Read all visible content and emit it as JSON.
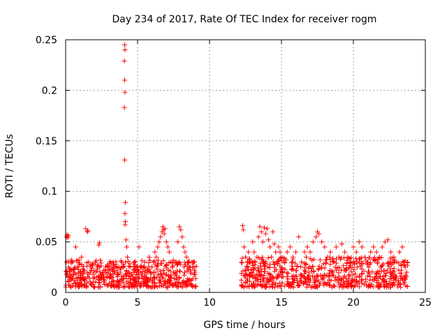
{
  "chart_data": {
    "type": "scatter",
    "title": "Day 234 of 2017, Rate Of TEC Index for receiver rogm",
    "xlabel": "GPS time / hours",
    "ylabel": "ROTI / TECUs",
    "xlim": [
      0,
      25
    ],
    "ylim": [
      0,
      0.25
    ],
    "x_ticks": [
      0,
      5,
      10,
      15,
      20,
      25
    ],
    "y_ticks": [
      0,
      0.05,
      0.1,
      0.15,
      0.2,
      0.25
    ],
    "x_tick_labels": [
      "0",
      "5",
      "10",
      "15",
      "20",
      "25"
    ],
    "y_tick_labels": [
      "0",
      "0.05",
      "0.1",
      "0.15",
      "0.2",
      "0.25"
    ],
    "grid": true,
    "marker": "plus",
    "series_color": "#ff0000",
    "points": [
      [
        0.05,
        0.055
      ],
      [
        0.1,
        0.057
      ],
      [
        0.15,
        0.054
      ],
      [
        0.2,
        0.056
      ],
      [
        0.05,
        0.03
      ],
      [
        0.1,
        0.02
      ],
      [
        0.15,
        0.015
      ],
      [
        0.2,
        0.025
      ],
      [
        0.3,
        0.018
      ],
      [
        0.4,
        0.022
      ],
      [
        0.5,
        0.03
      ],
      [
        0.6,
        0.02
      ],
      [
        0.7,
        0.045
      ],
      [
        0.8,
        0.025
      ],
      [
        0.9,
        0.015
      ],
      [
        1.0,
        0.02
      ],
      [
        1.1,
        0.035
      ],
      [
        1.2,
        0.018
      ],
      [
        1.3,
        0.022
      ],
      [
        1.4,
        0.063
      ],
      [
        1.5,
        0.06
      ],
      [
        1.55,
        0.061
      ],
      [
        1.6,
        0.03
      ],
      [
        1.7,
        0.02
      ],
      [
        1.8,
        0.025
      ],
      [
        1.9,
        0.018
      ],
      [
        2.0,
        0.015
      ],
      [
        2.1,
        0.02
      ],
      [
        2.2,
        0.025
      ],
      [
        2.3,
        0.047
      ],
      [
        2.35,
        0.049
      ],
      [
        2.4,
        0.02
      ],
      [
        2.5,
        0.015
      ],
      [
        2.6,
        0.018
      ],
      [
        2.7,
        0.012
      ],
      [
        2.8,
        0.02
      ],
      [
        2.9,
        0.015
      ],
      [
        3.0,
        0.022
      ],
      [
        3.1,
        0.018
      ],
      [
        3.2,
        0.025
      ],
      [
        3.3,
        0.03
      ],
      [
        3.4,
        0.02
      ],
      [
        3.5,
        0.028
      ],
      [
        3.6,
        0.018
      ],
      [
        3.7,
        0.025
      ],
      [
        3.8,
        0.02
      ],
      [
        3.9,
        0.03
      ],
      [
        4.0,
        0.028
      ],
      [
        4.1,
        0.245
      ],
      [
        4.12,
        0.24
      ],
      [
        4.08,
        0.229
      ],
      [
        4.1,
        0.21
      ],
      [
        4.12,
        0.198
      ],
      [
        4.08,
        0.183
      ],
      [
        4.1,
        0.131
      ],
      [
        4.15,
        0.089
      ],
      [
        4.12,
        0.078
      ],
      [
        4.15,
        0.07
      ],
      [
        4.13,
        0.067
      ],
      [
        4.2,
        0.052
      ],
      [
        4.25,
        0.045
      ],
      [
        4.3,
        0.035
      ],
      [
        4.4,
        0.02
      ],
      [
        4.5,
        0.025
      ],
      [
        4.6,
        0.018
      ],
      [
        4.7,
        0.022
      ],
      [
        4.8,
        0.03
      ],
      [
        4.9,
        0.02
      ],
      [
        5.0,
        0.025
      ],
      [
        5.1,
        0.045
      ],
      [
        5.2,
        0.02
      ],
      [
        5.3,
        0.018
      ],
      [
        5.4,
        0.025
      ],
      [
        5.5,
        0.03
      ],
      [
        5.6,
        0.02
      ],
      [
        5.7,
        0.022
      ],
      [
        5.8,
        0.035
      ],
      [
        5.9,
        0.02
      ],
      [
        6.0,
        0.025
      ],
      [
        6.1,
        0.03
      ],
      [
        6.2,
        0.04
      ],
      [
        6.3,
        0.035
      ],
      [
        6.4,
        0.045
      ],
      [
        6.5,
        0.05
      ],
      [
        6.6,
        0.055
      ],
      [
        6.7,
        0.06
      ],
      [
        6.75,
        0.065
      ],
      [
        6.8,
        0.062
      ],
      [
        6.85,
        0.058
      ],
      [
        6.9,
        0.063
      ],
      [
        7.0,
        0.05
      ],
      [
        7.1,
        0.045
      ],
      [
        7.2,
        0.04
      ],
      [
        7.3,
        0.03
      ],
      [
        7.4,
        0.025
      ],
      [
        7.5,
        0.02
      ],
      [
        7.6,
        0.018
      ],
      [
        7.7,
        0.03
      ],
      [
        7.8,
        0.05
      ],
      [
        7.9,
        0.065
      ],
      [
        8.0,
        0.062
      ],
      [
        8.1,
        0.055
      ],
      [
        8.2,
        0.045
      ],
      [
        8.3,
        0.04
      ],
      [
        8.4,
        0.035
      ],
      [
        8.5,
        0.03
      ],
      [
        8.6,
        0.025
      ],
      [
        8.7,
        0.02
      ],
      [
        8.8,
        0.025
      ],
      [
        8.9,
        0.03
      ],
      [
        9.0,
        0.02
      ],
      [
        12.3,
        0.066
      ],
      [
        12.35,
        0.062
      ],
      [
        12.4,
        0.045
      ],
      [
        12.5,
        0.035
      ],
      [
        12.6,
        0.025
      ],
      [
        12.7,
        0.04
      ],
      [
        12.8,
        0.03
      ],
      [
        12.9,
        0.02
      ],
      [
        13.0,
        0.05
      ],
      [
        13.1,
        0.04
      ],
      [
        13.2,
        0.03
      ],
      [
        13.3,
        0.035
      ],
      [
        13.4,
        0.055
      ],
      [
        13.5,
        0.065
      ],
      [
        13.6,
        0.06
      ],
      [
        13.7,
        0.05
      ],
      [
        13.8,
        0.064
      ],
      [
        13.9,
        0.058
      ],
      [
        14.0,
        0.063
      ],
      [
        14.1,
        0.052
      ],
      [
        14.2,
        0.045
      ],
      [
        14.3,
        0.035
      ],
      [
        14.4,
        0.06
      ],
      [
        14.5,
        0.048
      ],
      [
        14.6,
        0.04
      ],
      [
        14.7,
        0.03
      ],
      [
        14.8,
        0.045
      ],
      [
        14.9,
        0.04
      ],
      [
        15.0,
        0.035
      ],
      [
        15.2,
        0.03
      ],
      [
        15.4,
        0.04
      ],
      [
        15.6,
        0.045
      ],
      [
        15.8,
        0.035
      ],
      [
        16.0,
        0.04
      ],
      [
        16.2,
        0.055
      ],
      [
        16.4,
        0.03
      ],
      [
        16.6,
        0.04
      ],
      [
        16.8,
        0.045
      ],
      [
        17.0,
        0.04
      ],
      [
        17.2,
        0.05
      ],
      [
        17.4,
        0.055
      ],
      [
        17.5,
        0.06
      ],
      [
        17.6,
        0.058
      ],
      [
        17.8,
        0.05
      ],
      [
        18.0,
        0.045
      ],
      [
        18.2,
        0.035
      ],
      [
        18.4,
        0.04
      ],
      [
        18.6,
        0.03
      ],
      [
        18.8,
        0.045
      ],
      [
        19.0,
        0.035
      ],
      [
        19.2,
        0.048
      ],
      [
        19.4,
        0.04
      ],
      [
        19.6,
        0.035
      ],
      [
        19.8,
        0.03
      ],
      [
        20.0,
        0.045
      ],
      [
        20.2,
        0.04
      ],
      [
        20.4,
        0.05
      ],
      [
        20.6,
        0.045
      ],
      [
        20.8,
        0.035
      ],
      [
        21.0,
        0.03
      ],
      [
        21.2,
        0.04
      ],
      [
        21.4,
        0.045
      ],
      [
        21.6,
        0.04
      ],
      [
        21.8,
        0.035
      ],
      [
        22.0,
        0.045
      ],
      [
        22.2,
        0.05
      ],
      [
        22.4,
        0.052
      ],
      [
        22.6,
        0.04
      ],
      [
        22.8,
        0.035
      ],
      [
        23.0,
        0.03
      ],
      [
        23.2,
        0.04
      ],
      [
        23.4,
        0.045
      ],
      [
        23.5,
        0.03
      ],
      [
        23.6,
        0.025
      ],
      [
        23.7,
        0.02
      ]
    ],
    "band_segments": [
      {
        "x_start": 0.0,
        "x_end": 9.1,
        "y_low": 0.005,
        "y_high": 0.032
      },
      {
        "x_start": 12.2,
        "x_end": 23.8,
        "y_low": 0.005,
        "y_high": 0.035
      }
    ]
  }
}
